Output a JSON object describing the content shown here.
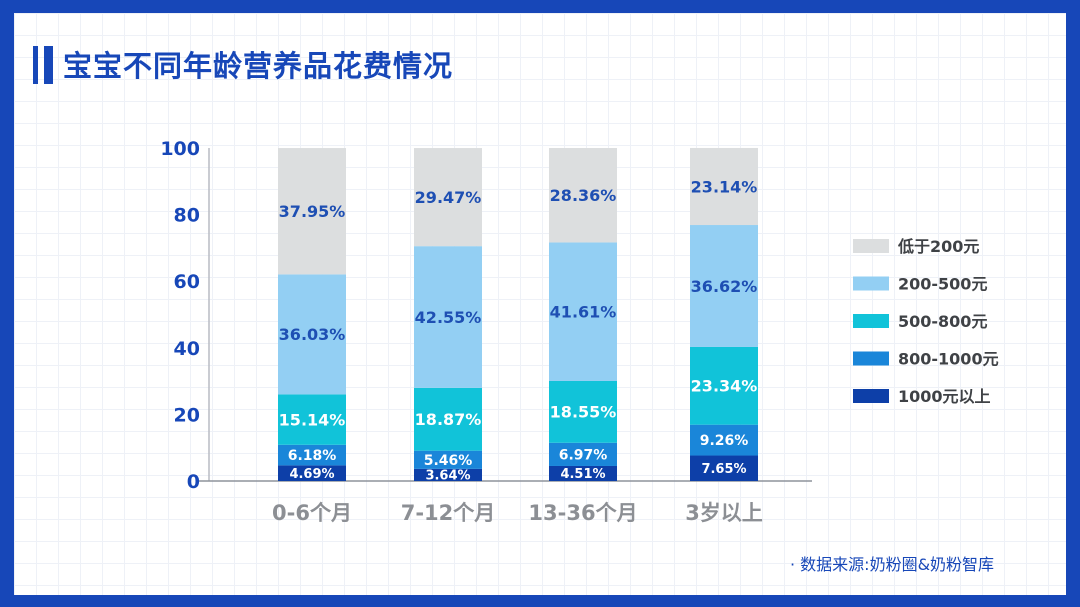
{
  "title": "宝宝不同年龄营养品花费情况",
  "source": "· 数据来源:奶粉圈&奶粉智库",
  "colors": {
    "frame": "#1747b8",
    "axis_text": "#1747b8"
  },
  "chart_data": {
    "type": "bar",
    "stacked": true,
    "categories": [
      "0-6个月",
      "7-12个月",
      "13-36个月",
      "3岁以上"
    ],
    "ylim": [
      0,
      100
    ],
    "yticks": [
      0,
      20,
      40,
      60,
      80,
      100
    ],
    "xlabel": "",
    "ylabel": "",
    "legend_position": "right",
    "series": [
      {
        "name": "1000元以上",
        "color": "#0d3fa8",
        "label_color": "#ffffff",
        "values": [
          4.69,
          3.64,
          4.51,
          7.65
        ],
        "labels": [
          "4.69%",
          "3.64%",
          "4.51%",
          "7.65%"
        ]
      },
      {
        "name": "800-1000元",
        "color": "#1a86d9",
        "label_color": "#ffffff",
        "values": [
          6.18,
          5.46,
          6.97,
          9.26
        ],
        "labels": [
          "6.18%",
          "5.46%",
          "6.97%",
          "9.26%"
        ]
      },
      {
        "name": "500-800元",
        "color": "#11c3d9",
        "label_color": "#ffffff",
        "values": [
          15.14,
          18.87,
          18.55,
          23.34
        ],
        "labels": [
          "15.14%",
          "18.87%",
          "18.55%",
          "23.34%"
        ]
      },
      {
        "name": "200-500元",
        "color": "#93cff3",
        "label_color": "#1e4fb3",
        "values": [
          36.03,
          42.55,
          41.61,
          36.62
        ],
        "labels": [
          "36.03%",
          "42.55%",
          "41.61%",
          "36.62%"
        ]
      },
      {
        "name": "低于200元",
        "color": "#dcdedf",
        "label_color": "#1e4fb3",
        "values": [
          37.95,
          29.47,
          28.36,
          23.14
        ],
        "labels": [
          "37.95%",
          "29.47%",
          "28.36%",
          "23.14%"
        ]
      }
    ]
  }
}
